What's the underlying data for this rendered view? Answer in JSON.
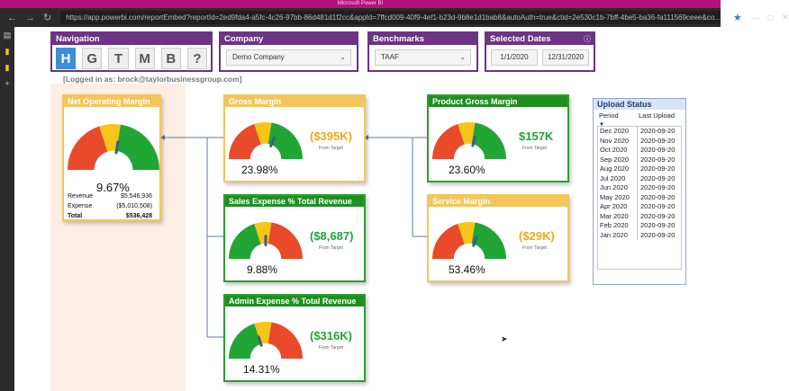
{
  "browser": {
    "window_title": "Microsoft Power BI",
    "url": "https://app.powerbi.com/reportEmbed?reportId=2ed9fda4-a5fc-4c26-97bb-86d481d1f2cc&appId=7ffcd009-40f9-4ef1-b23d-9b8e1d1bab8&autoAuth=true&ctid=2e530c1b-7bff-4be5-ba36-fa111569ceee&co..."
  },
  "navigation": {
    "title": "Navigation",
    "buttons": [
      "H",
      "G",
      "T",
      "M",
      "B",
      "?"
    ]
  },
  "company": {
    "title": "Company",
    "value": "Demo Company"
  },
  "benchmarks": {
    "title": "Benchmarks",
    "value": "TAAF"
  },
  "dates": {
    "title": "Selected Dates",
    "start": "1/1/2020",
    "end": "12/31/2020"
  },
  "logged_in": "[Logged in as: brock@taylorbusinessgroup.com]",
  "gauges": {
    "net_operating": {
      "title": "Net Operating Margin",
      "percent": "9.67%",
      "needle": 0.55,
      "colors": [
        "#e84a2a",
        "#f5c518",
        "#21a535"
      ]
    },
    "gross": {
      "title": "Gross Margin",
      "percent": "23.98%",
      "diff": "($395K)",
      "from": "From Target",
      "needle": 0.62,
      "colors": [
        "#e84a2a",
        "#f5c518",
        "#21a535"
      ]
    },
    "product_gross": {
      "title": "Product Gross Margin",
      "percent": "23.60%",
      "diff": "$157K",
      "from": "From Target",
      "needle": 0.58,
      "colors": [
        "#e84a2a",
        "#f5c518",
        "#21a535"
      ]
    },
    "sales_expense": {
      "title": "Sales Expense % Total Revenue",
      "percent": "9.88%",
      "diff": "($8,687)",
      "from": "From Target",
      "needle": 0.5,
      "colors": [
        "#21a535",
        "#f5c518",
        "#e84a2a"
      ]
    },
    "service": {
      "title": "Service Margin",
      "percent": "53.46%",
      "diff": "($29K)",
      "from": "From Target",
      "needle": 0.6,
      "colors": [
        "#e84a2a",
        "#f5c518",
        "#21a535"
      ]
    },
    "admin_expense": {
      "title": "Admin Expense % Total Revenue",
      "percent": "14.31%",
      "diff": "($316K)",
      "from": "From Target",
      "needle": 0.4,
      "colors": [
        "#21a535",
        "#f5c518",
        "#e84a2a"
      ]
    }
  },
  "net_rows": [
    {
      "label": "Revenue",
      "value": "$5,546,936"
    },
    {
      "label": "Expense",
      "value": "($5,010,508)"
    },
    {
      "label": "Total",
      "value": "$536,428"
    }
  ],
  "upload_status": {
    "title": "Upload Status",
    "col_period": "Period",
    "col_last": "Last Upload",
    "rows": [
      {
        "period": "Dec 2020",
        "last": "2020-09-20"
      },
      {
        "period": "Nov 2020",
        "last": "2020-09-20"
      },
      {
        "period": "Oct 2020",
        "last": "2020-09-20"
      },
      {
        "period": "Sep 2020",
        "last": "2020-09-20"
      },
      {
        "period": "Aug 2020",
        "last": "2020-09-20"
      },
      {
        "period": "Jul 2020",
        "last": "2020-09-20"
      },
      {
        "period": "Jun 2020",
        "last": "2020-09-20"
      },
      {
        "period": "May 2020",
        "last": "2020-09-20"
      },
      {
        "period": "Apr 2020",
        "last": "2020-09-20"
      },
      {
        "period": "Mar 2020",
        "last": "2020-09-20"
      },
      {
        "period": "Feb 2020",
        "last": "2020-09-20"
      },
      {
        "period": "Jan 2020",
        "last": "2020-09-20"
      }
    ]
  },
  "colors": {
    "accent_purple": "#6c3483",
    "nav_active": "#3b8ed8",
    "positive": "#21a535",
    "caution": "#f0a818",
    "negative": "#e84a2a",
    "browser_frame": "#b4117e"
  }
}
